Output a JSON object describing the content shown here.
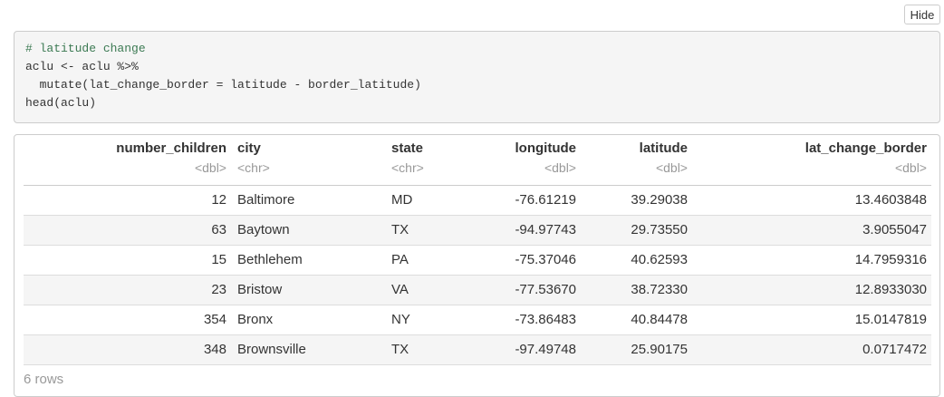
{
  "hide_button": "Hide",
  "code": [
    "# latitude change",
    "aclu <- aclu %>%",
    "  mutate(lat_change_border = latitude - border_latitude)",
    "head(aclu)"
  ],
  "table": {
    "columns": [
      {
        "name": "number_children",
        "type": "<dbl>"
      },
      {
        "name": "city",
        "type": "<chr>"
      },
      {
        "name": "state",
        "type": "<chr>"
      },
      {
        "name": "longitude",
        "type": "<dbl>"
      },
      {
        "name": "latitude",
        "type": "<dbl>"
      },
      {
        "name": "lat_change_border",
        "type": "<dbl>"
      }
    ],
    "rows": [
      [
        "12",
        "Baltimore",
        "MD",
        "-76.61219",
        "39.29038",
        "13.4603848"
      ],
      [
        "63",
        "Baytown",
        "TX",
        "-94.97743",
        "29.73550",
        "3.9055047"
      ],
      [
        "15",
        "Bethlehem",
        "PA",
        "-75.37046",
        "40.62593",
        "14.7959316"
      ],
      [
        "23",
        "Bristow",
        "VA",
        "-77.53670",
        "38.72330",
        "12.8933030"
      ],
      [
        "354",
        "Bronx",
        "NY",
        "-73.86483",
        "40.84478",
        "15.0147819"
      ],
      [
        "348",
        "Brownsville",
        "TX",
        "-97.49748",
        "25.90175",
        "0.0717472"
      ]
    ],
    "footer": "6 rows"
  }
}
